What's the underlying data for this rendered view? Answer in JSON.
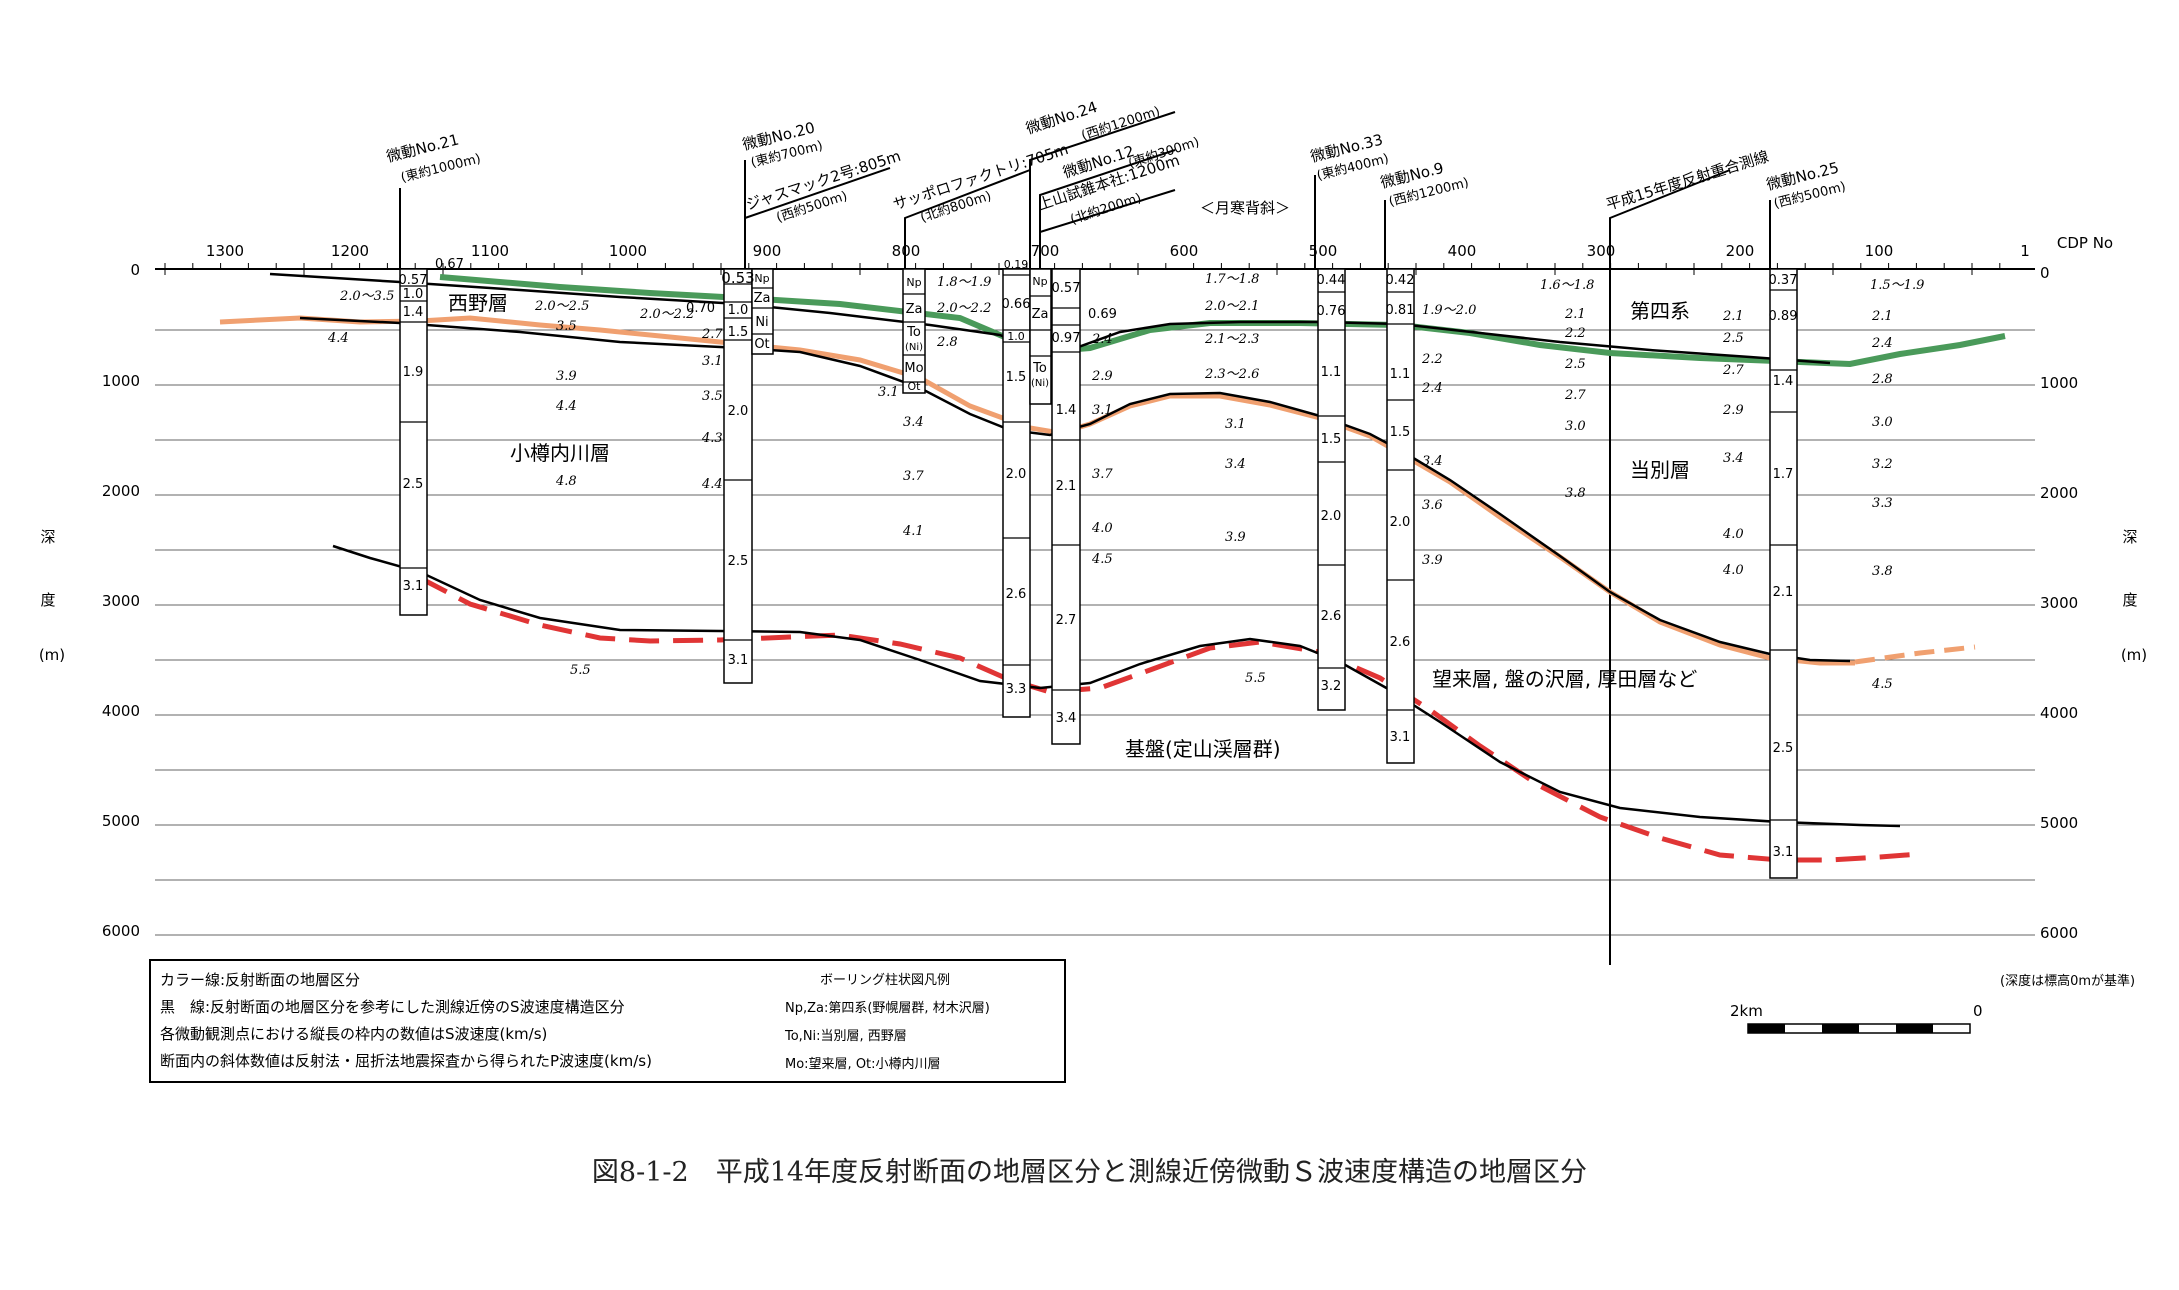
{
  "caption": "図8-1-2　平成14年度反射断面の地層区分と測線近傍微動Ｓ波速度構造の地層区分",
  "x_axis": {
    "title": "CDP No",
    "ticks": [
      "1300",
      "1200",
      "1100",
      "1000",
      "900",
      "800",
      "700",
      "600",
      "500",
      "400",
      "300",
      "200",
      "100",
      "1"
    ]
  },
  "y_axis": {
    "ticks": [
      "0",
      "1000",
      "2000",
      "3000",
      "4000",
      "5000",
      "6000"
    ],
    "right_ticks": [
      "0",
      "1000",
      "2000",
      "3000",
      "4000",
      "5000",
      "6000"
    ],
    "label_chars": [
      "深",
      "度",
      "(m)"
    ]
  },
  "anticline_label": "＜月寒背斜＞",
  "stations": [
    {
      "name": "微動No.21",
      "note": "(東約1000m)"
    },
    {
      "name": "微動No.20",
      "note": "(東約700m)"
    },
    {
      "name": "ジャスマック2号:805m",
      "note": "(西約500m)"
    },
    {
      "name": "サッポロファクトリ:705m",
      "note": "(北約800m)"
    },
    {
      "name": "微動No.24",
      "note": "(西約1200m)"
    },
    {
      "name": "微動No.12",
      "note": "(東約300m)"
    },
    {
      "name": "上山試錐本社:1200m",
      "note": "(北約200m)"
    },
    {
      "name": "微動No.33",
      "note": "(東約400m)"
    },
    {
      "name": "微動No.9",
      "note": "(西約1200m)"
    },
    {
      "name": "平成15年度反射重合測線",
      "note": ""
    },
    {
      "name": "微動No.25",
      "note": "(西約500m)"
    }
  ],
  "formations": {
    "nishino": "西野層",
    "otarunai": "小樽内川層",
    "daiyon": "第四系",
    "tobetsu": "当別層",
    "mourai": "望来層, 盤の沢層, 厚田層など",
    "kiban": "基盤(定山渓層群)"
  },
  "column_values": {
    "c21": [
      "0.57",
      "1.0",
      "1.4",
      "1.9",
      "2.5",
      "3.1"
    ],
    "c21_side": "0.67",
    "c20_side": "0.70",
    "c20": [
      "0.53",
      "1.0",
      "1.5",
      "2.0",
      "2.5",
      "3.1"
    ],
    "jas": [
      "Np",
      "Za",
      "Ni",
      "Ot"
    ],
    "sap": [
      "Np",
      "Za",
      "To",
      "(Ni)",
      "Mo",
      "Ot"
    ],
    "c24": [
      "0.19",
      "0.66",
      "1.0",
      "1.5",
      "2.0",
      "2.6",
      "3.3"
    ],
    "kam": [
      "Np",
      "Za",
      "To",
      "(Ni)"
    ],
    "c12": [
      "0.57",
      "0.69",
      "0.97",
      "1.4",
      "2.1",
      "2.7",
      "3.4"
    ],
    "c33": [
      "0.44",
      "0.76",
      "1.1",
      "1.5",
      "2.0",
      "2.6",
      "3.2"
    ],
    "c9": [
      "0.42",
      "0.81",
      "1.1",
      "1.5",
      "2.0",
      "2.6",
      "3.1"
    ],
    "c25": [
      "0.37",
      "0.89",
      "1.4",
      "1.7",
      "2.1",
      "2.5",
      "3.1"
    ]
  },
  "p_velocities": [
    "2.0〜3.5",
    "2.0〜2.5",
    "3.5",
    "4.4",
    "3.9",
    "4.4",
    "4.8",
    "2.0〜2.2",
    "2.7",
    "3.1",
    "3.5",
    "4.3",
    "4.4",
    "1.8〜1.9",
    "2.0〜2.2",
    "2.8",
    "3.1",
    "3.4",
    "3.7",
    "4.1",
    "2.4",
    "2.9",
    "3.1",
    "3.7",
    "4.0",
    "4.5",
    "1.7〜1.8",
    "2.0〜2.1",
    "2.1〜2.3",
    "2.3〜2.6",
    "3.1",
    "3.4",
    "3.9",
    "5.5",
    "5.5",
    "1.9〜2.0",
    "2.2",
    "2.4",
    "3.4",
    "3.6",
    "3.9",
    "1.6〜1.8",
    "2.1",
    "2.2",
    "2.5",
    "2.7",
    "3.0",
    "3.8",
    "2.1",
    "2.5",
    "2.7",
    "2.9",
    "3.4",
    "4.0",
    "4.0",
    "1.5〜1.9",
    "2.1",
    "2.4",
    "2.8",
    "3.0",
    "3.2",
    "3.3",
    "3.8",
    "4.5"
  ],
  "legend": {
    "lines": [
      "カラー線:反射断面の地層区分",
      "黒　線:反射断面の地層区分を参考にした測線近傍のS波速度構造区分",
      "各微動観測点における縦長の枠内の数値はS波速度(km/s)",
      "断面内の斜体数値は反射法・屈折法地震探査から得られたP波速度(km/s)"
    ],
    "boring_title": "ボーリング柱状図凡例",
    "boring_items": [
      "Np,Za:第四系(野幌層群, 材木沢層)",
      "To,Ni:当別層, 西野層",
      "Mo:望来層, Ot:小樽内川層"
    ]
  },
  "scale_bar": {
    "left_label": "2km",
    "right_label": "0"
  },
  "datum_note": "(深度は標高0mが基準)",
  "colors": {
    "green": "#4a9a5a",
    "orange": "#f0a070",
    "red": "#e03535",
    "black": "#000000"
  }
}
